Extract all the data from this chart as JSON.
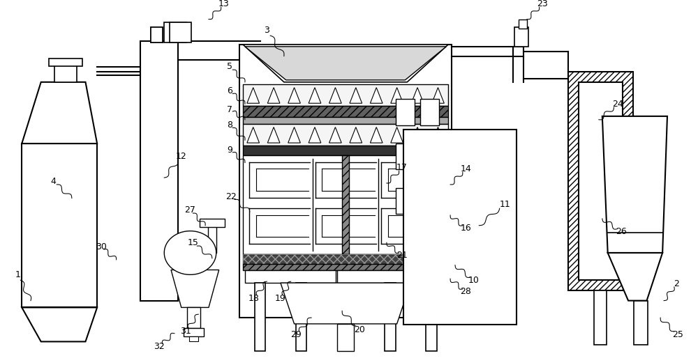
{
  "bg_color": "#ffffff",
  "lc": "#000000",
  "fig_width": 10.0,
  "fig_height": 5.14,
  "dpi": 100
}
